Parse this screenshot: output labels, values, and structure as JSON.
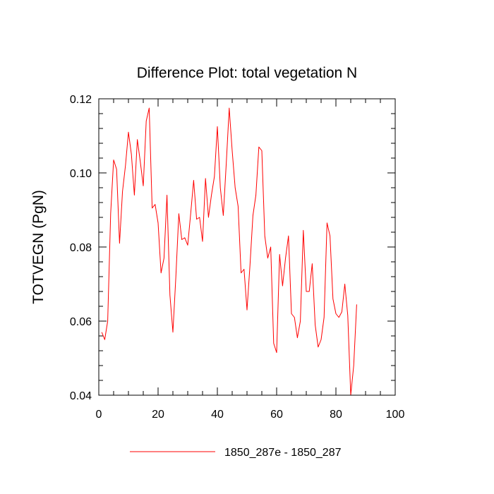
{
  "chart_data": {
    "type": "line",
    "title": "Difference Plot: total vegetation N",
    "xlabel": "",
    "ylabel": "TOTVEGN  (PgN)",
    "xlim": [
      0,
      100
    ],
    "ylim": [
      0.04,
      0.12
    ],
    "x_ticks": [
      0,
      20,
      40,
      60,
      80,
      100
    ],
    "x_tick_labels": [
      "0",
      "20",
      "40",
      "60",
      "80",
      "100"
    ],
    "y_ticks": [
      0.04,
      0.06,
      0.08,
      0.1,
      0.12
    ],
    "y_tick_labels": [
      "0.04",
      "0.06",
      "0.08",
      "0.10",
      "0.12"
    ],
    "grid": false,
    "legend_position": "bottom-center",
    "series": [
      {
        "name": "1850_287e - 1850_287",
        "color": "#ff0000",
        "x": [
          1,
          2,
          3,
          4,
          5,
          6,
          7,
          8,
          9,
          10,
          11,
          12,
          13,
          14,
          15,
          16,
          17,
          18,
          19,
          20,
          21,
          22,
          23,
          24,
          25,
          26,
          27,
          28,
          29,
          30,
          31,
          32,
          33,
          34,
          35,
          36,
          37,
          38,
          39,
          40,
          41,
          42,
          43,
          44,
          45,
          46,
          47,
          48,
          49,
          50,
          51,
          52,
          53,
          54,
          55,
          56,
          57,
          58,
          59,
          60,
          61,
          62,
          63,
          64,
          65,
          66,
          67,
          68,
          69,
          70,
          71,
          72,
          73,
          74,
          75,
          76,
          77,
          78,
          79,
          80,
          81,
          82,
          83,
          84,
          85,
          86,
          87
        ],
        "values": [
          0.057,
          0.055,
          0.06,
          0.089,
          0.1035,
          0.101,
          0.081,
          0.095,
          0.102,
          0.111,
          0.105,
          0.094,
          0.109,
          0.103,
          0.0965,
          0.114,
          0.1175,
          0.0905,
          0.0915,
          0.0865,
          0.073,
          0.077,
          0.094,
          0.067,
          0.057,
          0.072,
          0.089,
          0.082,
          0.0825,
          0.0805,
          0.089,
          0.098,
          0.0875,
          0.088,
          0.0815,
          0.0985,
          0.088,
          0.094,
          0.099,
          0.1125,
          0.096,
          0.0885,
          0.1025,
          0.1175,
          0.106,
          0.096,
          0.091,
          0.073,
          0.074,
          0.063,
          0.075,
          0.0885,
          0.094,
          0.107,
          0.106,
          0.083,
          0.077,
          0.08,
          0.054,
          0.0515,
          0.078,
          0.0695,
          0.077,
          0.083,
          0.062,
          0.061,
          0.0555,
          0.06,
          0.0845,
          0.068,
          0.068,
          0.0755,
          0.059,
          0.053,
          0.055,
          0.061,
          0.0865,
          0.083,
          0.066,
          0.062,
          0.061,
          0.0625,
          0.07,
          0.0615,
          0.04,
          0.048,
          0.0645
        ]
      }
    ]
  }
}
